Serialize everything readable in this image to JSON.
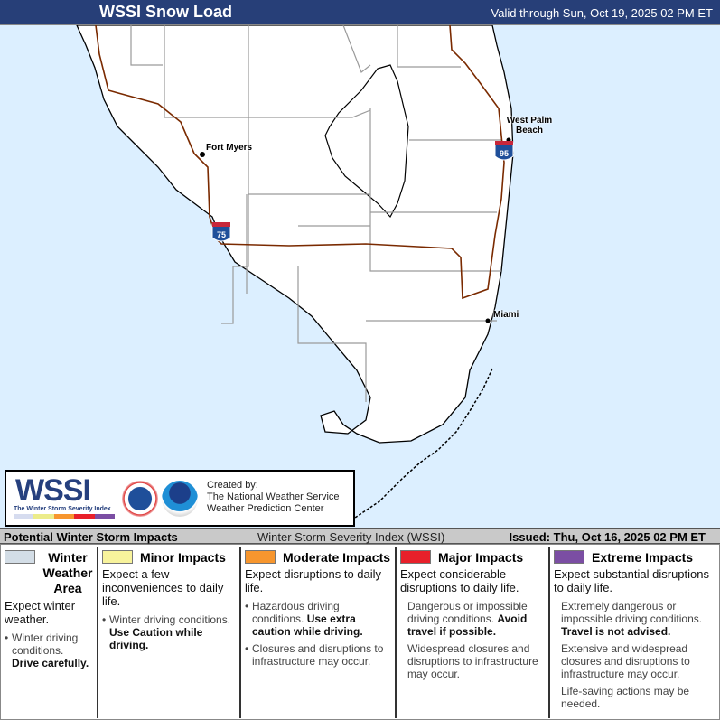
{
  "header": {
    "title": "WSSI Snow Load",
    "valid": "Valid through Sun, Oct 19, 2025 02 PM ET"
  },
  "map": {
    "cities": [
      "Fort Myers",
      "West Palm Beach",
      "Miami"
    ],
    "highways": [
      "75",
      "95"
    ],
    "colors": {
      "water": "#dcefff",
      "land": "#ffffff",
      "roads": "#7a2a00",
      "boundaries": "#9a9a9a"
    }
  },
  "logo": {
    "wordmark": "WSSI",
    "tagline": "The Winter Storm Severity Index",
    "seals": [
      "National Weather Service",
      "NOAA"
    ],
    "created_by": "Created by:",
    "org1": "The National Weather Service",
    "org2": "Weather Prediction Center"
  },
  "bar": {
    "left": "Potential Winter Storm Impacts",
    "middle": "Winter Storm Severity Index (WSSI)",
    "right": "Issued: Thu, Oct 16, 2025 02 PM ET"
  },
  "legend": [
    {
      "title": "Winter Weather Area",
      "color": "#d3dde6",
      "lead": "Expect winter weather.",
      "items": [
        {
          "text": "Winter driving conditions.",
          "bold": "Drive carefully."
        }
      ]
    },
    {
      "title": "Minor Impacts",
      "color": "#f8f39c",
      "lead": "Expect a few inconveniences to daily life.",
      "items": [
        {
          "text": "Winter driving conditions.",
          "bold": "Use Caution while driving."
        }
      ]
    },
    {
      "title": "Moderate Impacts",
      "color": "#f7962e",
      "lead": "Expect disruptions to daily life.",
      "items": [
        {
          "text": "Hazardous driving conditions.",
          "bold": "Use extra caution while driving."
        },
        {
          "text": "Closures and disruptions to infrastructure may occur.",
          "bold": ""
        }
      ]
    },
    {
      "title": "Major Impacts",
      "color": "#e8202a",
      "lead": "Expect considerable disruptions to daily life.",
      "items": [
        {
          "text": "Dangerous or impossible driving conditions.",
          "bold": "Avoid travel if possible."
        },
        {
          "text": "Widespread closures and disruptions to infrastructure may occur.",
          "bold": ""
        }
      ]
    },
    {
      "title": "Extreme Impacts",
      "color": "#7b4ea3",
      "lead": "Expect substantial disruptions to daily life.",
      "items": [
        {
          "text": "Extremely dangerous or impossible driving conditions.",
          "bold": "Travel is not advised."
        },
        {
          "text": "Extensive and widespread closures and disruptions to infrastructure may occur.",
          "bold": ""
        },
        {
          "text": "Life-saving actions may be needed.",
          "bold": ""
        }
      ]
    }
  ]
}
